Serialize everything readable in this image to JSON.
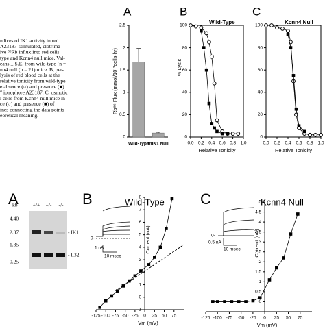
{
  "caption": [
    "ndices of IK1 activity in red",
    "A23187-stimulated, clotrima-",
    "ive ⁸⁶Rb influx into red cells",
    "type and Kcnn4 null mice. Val-",
    "eans ± S.E. from wild-type (n =",
    "nn4 null (n = 21) mice. B, per-",
    "lysis of red blood cells at the",
    "relative tonicity from wild-type",
    "e absence (○) and presence (■)",
    "″ ionophore A23187. C, osmotic",
    "l cells from Kcnn4 null mice in",
    "ce (○) and presence (■) of",
    "ines connecting the data points",
    "eoretical meaning."
  ],
  "blot": {
    "title": "A",
    "unit": "kb",
    "lanes": [
      "+/+",
      "+/-",
      "-/-"
    ],
    "markers": [
      "4.40",
      "2.37",
      "1.35",
      "0.25"
    ],
    "bands": [
      "- IK1",
      "- L32"
    ]
  },
  "insets": {
    "wt": {
      "zero": "0-",
      "scale_current": "1 nA",
      "scale_time": "10 msec"
    },
    "null": {
      "zero": "0-",
      "scale_current": "0.5 nA",
      "scale_time": "10 msec"
    }
  },
  "chart_data": [
    {
      "type": "bar",
      "title": "A",
      "ylabel": "Rb⁸⁶ Flux (mmol/10¹³cells-hr)",
      "categories": [
        "Wild-Type",
        "mIK1 Null"
      ],
      "values": [
        1.68,
        0.09
      ],
      "errors": [
        0.3,
        0.02
      ],
      "color": "#a6a6a6",
      "ylim": [
        0,
        2.5
      ],
      "yticks": [
        0,
        0.5,
        1,
        1.5,
        2,
        2.5
      ]
    },
    {
      "type": "line",
      "title": "B",
      "subtitle": "Wild-Type",
      "xlabel": "Relative Tonicity",
      "ylabel": "% Lysis",
      "xlim": [
        0,
        1.0
      ],
      "xticks": [
        {
          "value": 0,
          "label": "0.0"
        },
        {
          "value": 0.2,
          "label": "0.2"
        },
        {
          "value": 0.4,
          "label": "0.4"
        },
        {
          "value": 0.6,
          "label": "0.6"
        },
        {
          "value": 0.8,
          "label": "0.8"
        },
        {
          "value": 1.0,
          "label": "1.0"
        }
      ],
      "ylim": [
        0,
        100
      ],
      "yticks": [
        0,
        20,
        40,
        60,
        80,
        100
      ],
      "series": [
        {
          "marker": "circle",
          "color": "#000000",
          "x": [
            0,
            0.1,
            0.2,
            0.3,
            0.35,
            0.4,
            0.45,
            0.5,
            0.6,
            0.7,
            0.8,
            0.9
          ],
          "values": [
            100,
            99,
            98,
            93,
            85,
            72,
            48,
            15,
            5,
            3,
            3,
            3
          ]
        },
        {
          "marker": "square",
          "color": "#000000",
          "x": [
            0.2,
            0.25,
            0.3,
            0.35,
            0.4,
            0.45,
            0.5,
            0.6,
            0.7
          ],
          "values": [
            95,
            80,
            60,
            30,
            12,
            8,
            5,
            3,
            3
          ]
        }
      ]
    },
    {
      "type": "line",
      "title": "C",
      "subtitle": "Kcnn4 Null",
      "xlabel": "Relative Tonicity",
      "xlim": [
        0,
        1.0
      ],
      "xticks": [
        {
          "value": 0,
          "label": "0.0"
        },
        {
          "value": 0.2,
          "label": "0.2"
        },
        {
          "value": 0.4,
          "label": "0.4"
        },
        {
          "value": 0.6,
          "label": "0.6"
        },
        {
          "value": 0.8,
          "label": "0.8"
        },
        {
          "value": 1.0,
          "label": "1.0"
        }
      ],
      "ylim": [
        0,
        100
      ],
      "yticks": [
        0,
        20,
        40,
        60,
        80,
        100
      ],
      "series": [
        {
          "marker": "circle",
          "color": "#000000",
          "x": [
            0,
            0.1,
            0.2,
            0.3,
            0.4,
            0.45,
            0.5,
            0.55,
            0.6,
            0.7,
            0.8,
            0.9,
            1.0
          ],
          "values": [
            100,
            100,
            98,
            97,
            95,
            85,
            50,
            20,
            8,
            3,
            2,
            2,
            2
          ]
        },
        {
          "marker": "square",
          "color": "#000000",
          "x": [
            0.4,
            0.45,
            0.5,
            0.55,
            0.6,
            0.7
          ],
          "values": [
            92,
            80,
            55,
            25,
            10,
            5
          ]
        }
      ]
    },
    {
      "type": "line",
      "title": "B",
      "subtitle": "Wild-Type",
      "xlabel": "Vm (mV)",
      "ylabel": "Current (nA)",
      "xlim": [
        -125,
        100
      ],
      "xticks": [
        -125,
        -100,
        -75,
        -50,
        -25,
        0,
        25,
        50,
        75
      ],
      "ylim": [
        -1,
        8
      ],
      "yticks": [
        -1,
        0,
        1,
        2,
        3,
        4,
        5,
        6,
        7,
        8
      ],
      "series": [
        {
          "marker": "square",
          "color": "#000000",
          "x": [
            -115,
            -100,
            -85,
            -70,
            -55,
            -40,
            -25,
            -10,
            10,
            25,
            40,
            55,
            70
          ],
          "values": [
            -0.8,
            -0.3,
            0.1,
            0.5,
            0.9,
            1.3,
            1.7,
            2.1,
            2.6,
            3.2,
            4.0,
            5.5,
            7.9
          ]
        }
      ],
      "fit_line": {
        "x": [
          -75,
          100
        ],
        "values": [
          0.5,
          4.2
        ]
      }
    },
    {
      "type": "line",
      "title": "C",
      "subtitle": "Kcnn4 Null",
      "xlabel": "Vm (mV)",
      "ylabel": "Current (nA)",
      "xlim": [
        -125,
        100
      ],
      "xticks": [
        -125,
        -100,
        -75,
        -50,
        -25,
        0,
        25,
        50,
        75
      ],
      "ylim": [
        -0.5,
        5
      ],
      "yticks": [
        0,
        0.5,
        1,
        1.5,
        2,
        2.5,
        3,
        3.5,
        4,
        4.5,
        5
      ],
      "series": [
        {
          "marker": "square",
          "color": "#000000",
          "x": [
            -110,
            -100,
            -85,
            -70,
            -55,
            -40,
            -25,
            -10,
            10,
            25,
            40,
            55,
            70
          ],
          "values": [
            0,
            0,
            0,
            0,
            0,
            0,
            0.05,
            0.2,
            1.1,
            1.7,
            2.2,
            3.4,
            4.4
          ]
        }
      ]
    }
  ]
}
